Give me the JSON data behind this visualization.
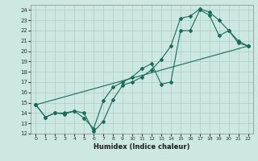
{
  "xlabel": "Humidex (Indice chaleur)",
  "bg_color": "#cce8e0",
  "grid_color": "#aaccc4",
  "line_color": "#1a6b5a",
  "xlim": [
    -0.5,
    22.5
  ],
  "ylim": [
    12,
    24.5
  ],
  "xticks": [
    0,
    1,
    2,
    3,
    4,
    5,
    6,
    7,
    8,
    9,
    10,
    11,
    12,
    13,
    14,
    15,
    16,
    17,
    18,
    19,
    20,
    21,
    22
  ],
  "yticks": [
    12,
    13,
    14,
    15,
    16,
    17,
    18,
    19,
    20,
    21,
    22,
    23,
    24
  ],
  "line1_x": [
    0,
    1,
    2,
    3,
    4,
    5,
    6,
    7,
    8,
    9,
    10,
    11,
    12,
    13,
    14,
    15,
    16,
    17,
    18,
    19,
    20,
    21,
    22
  ],
  "line1_y": [
    14.8,
    13.6,
    14.0,
    14.0,
    14.2,
    14.0,
    12.2,
    13.2,
    15.3,
    16.7,
    17.0,
    17.5,
    18.2,
    19.2,
    20.5,
    23.2,
    23.4,
    24.1,
    23.8,
    23.0,
    22.0,
    20.8,
    20.5
  ],
  "line2_x": [
    0,
    1,
    2,
    3,
    4,
    5,
    6,
    7,
    8,
    9,
    10,
    11,
    12,
    13,
    14,
    15,
    16,
    17,
    18,
    19,
    20,
    21,
    22
  ],
  "line2_y": [
    14.8,
    13.6,
    14.0,
    13.9,
    14.2,
    13.5,
    12.5,
    15.2,
    16.5,
    17.0,
    17.5,
    18.3,
    18.8,
    16.8,
    17.0,
    22.0,
    22.0,
    24.0,
    23.5,
    21.5,
    22.0,
    21.0,
    20.5
  ],
  "line3_x": [
    0,
    22
  ],
  "line3_y": [
    14.8,
    20.5
  ]
}
